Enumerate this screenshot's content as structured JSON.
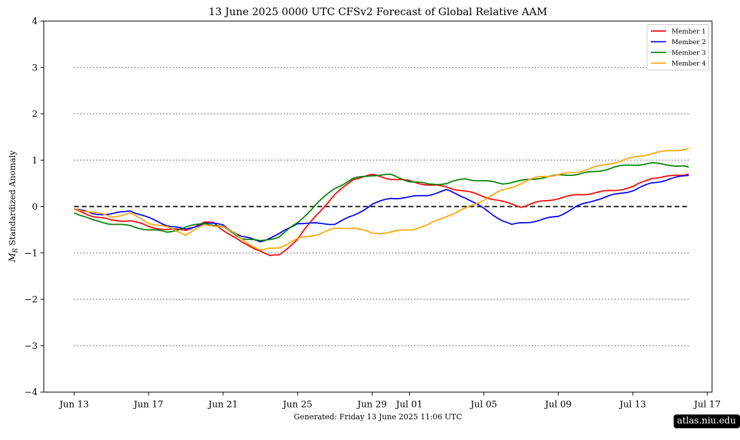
{
  "footer_text": "Generated: Friday  13  June  2025  11:06 UTC",
  "badge_text": "atlas.niu.edu",
  "chart_data": {
    "type": "line",
    "title": "13  June  2025 0000 UTC   CFSv2 Forecast of Global Relative AAM",
    "ylabel": "M_R Standardized Anomaly",
    "xlabel": "",
    "x_start": "2025-06-13",
    "x_end": "2025-07-16",
    "xlim": [
      "2025-06-11 09:00",
      "2025-07-17 06:00"
    ],
    "ylim": [
      -4,
      4
    ],
    "yticks": [
      -4,
      -3,
      -2,
      -1,
      0,
      1,
      2,
      3,
      4
    ],
    "ytick_labels": [
      "−4",
      "−3",
      "−2",
      "−1",
      "0",
      "1",
      "2",
      "3",
      "4"
    ],
    "xticks": [
      {
        "label": "Jun 13",
        "date": "2025-06-13"
      },
      {
        "label": "Jun 17",
        "date": "2025-06-17"
      },
      {
        "label": "Jun 21",
        "date": "2025-06-21"
      },
      {
        "label": "Jun 25",
        "date": "2025-06-25"
      },
      {
        "label": "Jun 29",
        "date": "2025-06-29"
      },
      {
        "label": "Jul 01",
        "date": "2025-07-01"
      },
      {
        "label": "Jul 05",
        "date": "2025-07-05"
      },
      {
        "label": "Jul 09",
        "date": "2025-07-09"
      },
      {
        "label": "Jul 13",
        "date": "2025-07-13"
      },
      {
        "label": "Jul 17",
        "date": "2025-07-17"
      }
    ],
    "reference_lines": {
      "dashed": [
        0
      ],
      "dotted": [
        -3,
        -2,
        -1,
        1,
        2,
        3
      ],
      "line_start": "2025-06-13",
      "line_end": "2025-07-16"
    },
    "legend_position": "top-right",
    "series": [
      {
        "name": "Member 1",
        "color": "#ff0000",
        "points": [
          [
            "2025-06-13",
            -0.07
          ],
          [
            "2025-06-14",
            -0.2
          ],
          [
            "2025-06-15",
            -0.3
          ],
          [
            "2025-06-16",
            -0.3
          ],
          [
            "2025-06-17",
            -0.43
          ],
          [
            "2025-06-18",
            -0.5
          ],
          [
            "2025-06-19",
            -0.5
          ],
          [
            "2025-06-20",
            -0.35
          ],
          [
            "2025-06-20 12:00",
            -0.35
          ],
          [
            "2025-06-21",
            -0.5
          ],
          [
            "2025-06-22",
            -0.78
          ],
          [
            "2025-06-23",
            -0.95
          ],
          [
            "2025-06-23 12:00",
            -1.07
          ],
          [
            "2025-06-24",
            -1.05
          ],
          [
            "2025-06-25",
            -0.7
          ],
          [
            "2025-06-26",
            -0.18
          ],
          [
            "2025-06-27",
            0.25
          ],
          [
            "2025-06-28",
            0.6
          ],
          [
            "2025-06-29",
            0.68
          ],
          [
            "2025-06-30",
            0.6
          ],
          [
            "2025-07-01",
            0.55
          ],
          [
            "2025-07-02",
            0.47
          ],
          [
            "2025-07-03",
            0.42
          ],
          [
            "2025-07-04",
            0.33
          ],
          [
            "2025-07-05",
            0.22
          ],
          [
            "2025-07-06",
            0.1
          ],
          [
            "2025-07-07",
            0.0
          ],
          [
            "2025-07-08",
            0.1
          ],
          [
            "2025-07-09",
            0.18
          ],
          [
            "2025-07-10",
            0.25
          ],
          [
            "2025-07-11",
            0.3
          ],
          [
            "2025-07-12",
            0.35
          ],
          [
            "2025-07-13",
            0.42
          ],
          [
            "2025-07-14",
            0.62
          ],
          [
            "2025-07-15",
            0.65
          ],
          [
            "2025-07-16",
            0.7
          ]
        ]
      },
      {
        "name": "Member 2",
        "color": "#0000ff",
        "points": [
          [
            "2025-06-13",
            -0.05
          ],
          [
            "2025-06-14",
            -0.15
          ],
          [
            "2025-06-15",
            -0.17
          ],
          [
            "2025-06-16",
            -0.08
          ],
          [
            "2025-06-17",
            -0.25
          ],
          [
            "2025-06-18",
            -0.4
          ],
          [
            "2025-06-19",
            -0.5
          ],
          [
            "2025-06-20",
            -0.35
          ],
          [
            "2025-06-21",
            -0.4
          ],
          [
            "2025-06-22",
            -0.65
          ],
          [
            "2025-06-23",
            -0.75
          ],
          [
            "2025-06-24",
            -0.6
          ],
          [
            "2025-06-25",
            -0.35
          ],
          [
            "2025-06-26",
            -0.37
          ],
          [
            "2025-06-27",
            -0.37
          ],
          [
            "2025-06-28",
            -0.2
          ],
          [
            "2025-06-29",
            0.05
          ],
          [
            "2025-06-30",
            0.18
          ],
          [
            "2025-07-01",
            0.2
          ],
          [
            "2025-07-02",
            0.25
          ],
          [
            "2025-07-03",
            0.35
          ],
          [
            "2025-07-04",
            0.2
          ],
          [
            "2025-07-05",
            -0.05
          ],
          [
            "2025-07-06",
            -0.3
          ],
          [
            "2025-07-06 12:00",
            -0.4
          ],
          [
            "2025-07-07",
            -0.35
          ],
          [
            "2025-07-08",
            -0.3
          ],
          [
            "2025-07-09",
            -0.2
          ],
          [
            "2025-07-10",
            0.0
          ],
          [
            "2025-07-11",
            0.15
          ],
          [
            "2025-07-12",
            0.25
          ],
          [
            "2025-07-13",
            0.35
          ],
          [
            "2025-07-14",
            0.5
          ],
          [
            "2025-07-15",
            0.6
          ],
          [
            "2025-07-16",
            0.67
          ]
        ]
      },
      {
        "name": "Member 3",
        "color": "#008000",
        "points": [
          [
            "2025-06-13",
            -0.12
          ],
          [
            "2025-06-14",
            -0.3
          ],
          [
            "2025-06-15",
            -0.37
          ],
          [
            "2025-06-16",
            -0.42
          ],
          [
            "2025-06-17",
            -0.5
          ],
          [
            "2025-06-18",
            -0.55
          ],
          [
            "2025-06-19",
            -0.45
          ],
          [
            "2025-06-20",
            -0.35
          ],
          [
            "2025-06-21",
            -0.45
          ],
          [
            "2025-06-22",
            -0.68
          ],
          [
            "2025-06-23",
            -0.75
          ],
          [
            "2025-06-24",
            -0.65
          ],
          [
            "2025-06-25",
            -0.35
          ],
          [
            "2025-06-26",
            0.05
          ],
          [
            "2025-06-27",
            0.4
          ],
          [
            "2025-06-28",
            0.6
          ],
          [
            "2025-06-29",
            0.68
          ],
          [
            "2025-06-30",
            0.68
          ],
          [
            "2025-07-01",
            0.55
          ],
          [
            "2025-07-02",
            0.48
          ],
          [
            "2025-07-03",
            0.5
          ],
          [
            "2025-07-04",
            0.6
          ],
          [
            "2025-07-05",
            0.55
          ],
          [
            "2025-07-06",
            0.5
          ],
          [
            "2025-07-07",
            0.55
          ],
          [
            "2025-07-08",
            0.62
          ],
          [
            "2025-07-09",
            0.67
          ],
          [
            "2025-07-10",
            0.7
          ],
          [
            "2025-07-11",
            0.75
          ],
          [
            "2025-07-12",
            0.85
          ],
          [
            "2025-07-13",
            0.9
          ],
          [
            "2025-07-14",
            0.93
          ],
          [
            "2025-07-15",
            0.9
          ],
          [
            "2025-07-16",
            0.85
          ]
        ]
      },
      {
        "name": "Member 4",
        "color": "#ffa500",
        "points": [
          [
            "2025-06-13",
            -0.05
          ],
          [
            "2025-06-14",
            -0.12
          ],
          [
            "2025-06-15",
            -0.22
          ],
          [
            "2025-06-16",
            -0.15
          ],
          [
            "2025-06-17",
            -0.35
          ],
          [
            "2025-06-18",
            -0.45
          ],
          [
            "2025-06-19",
            -0.6
          ],
          [
            "2025-06-20",
            -0.4
          ],
          [
            "2025-06-21",
            -0.42
          ],
          [
            "2025-06-22",
            -0.7
          ],
          [
            "2025-06-23",
            -0.95
          ],
          [
            "2025-06-24",
            -0.88
          ],
          [
            "2025-06-25",
            -0.7
          ],
          [
            "2025-06-26",
            -0.6
          ],
          [
            "2025-06-27",
            -0.48
          ],
          [
            "2025-06-28",
            -0.45
          ],
          [
            "2025-06-29",
            -0.58
          ],
          [
            "2025-06-30",
            -0.55
          ],
          [
            "2025-07-01",
            -0.5
          ],
          [
            "2025-07-02",
            -0.4
          ],
          [
            "2025-07-03",
            -0.2
          ],
          [
            "2025-07-04",
            -0.05
          ],
          [
            "2025-07-05",
            0.15
          ],
          [
            "2025-07-06",
            0.35
          ],
          [
            "2025-07-07",
            0.5
          ],
          [
            "2025-07-08",
            0.65
          ],
          [
            "2025-07-09",
            0.68
          ],
          [
            "2025-07-10",
            0.75
          ],
          [
            "2025-07-11",
            0.85
          ],
          [
            "2025-07-12",
            0.95
          ],
          [
            "2025-07-13",
            1.05
          ],
          [
            "2025-07-14",
            1.15
          ],
          [
            "2025-07-15",
            1.2
          ],
          [
            "2025-07-16",
            1.25
          ]
        ]
      }
    ]
  }
}
